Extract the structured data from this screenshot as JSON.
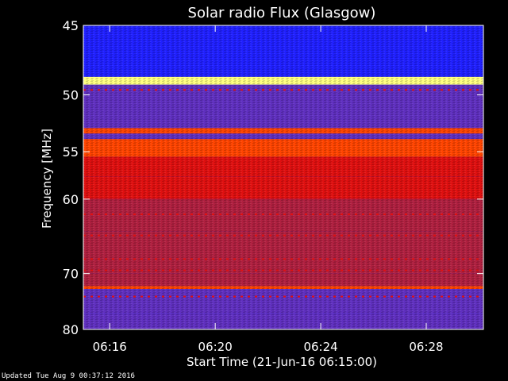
{
  "chart_data": {
    "type": "heatmap",
    "title": "Solar radio Flux (Glasgow)",
    "xlabel": "Start Time (21-Jun-16 06:15:00)",
    "ylabel": "Frequency [MHz]",
    "x_range": [
      "06:15:00",
      "06:30:10"
    ],
    "x_ticks": [
      "06:16",
      "06:20",
      "06:24",
      "06:28"
    ],
    "y_range": [
      45,
      80
    ],
    "y_ticks": [
      45,
      50,
      55,
      60,
      70,
      80
    ],
    "y_scale": "reciprocal",
    "colormap": [
      "#000080",
      "#2020ff",
      "#6030c0",
      "#b02040",
      "#e01010",
      "#ff4400",
      "#ff9900",
      "#ffff80"
    ],
    "bands": [
      {
        "f0": 45.0,
        "f1": 45.6,
        "level": 0.1
      },
      {
        "f0": 45.6,
        "f1": 48.6,
        "level": 0.18
      },
      {
        "f0": 48.6,
        "f1": 49.2,
        "level": 0.95
      },
      {
        "f0": 49.2,
        "f1": 52.8,
        "level": 0.22
      },
      {
        "f0": 52.8,
        "f1": 53.3,
        "level": 0.7
      },
      {
        "f0": 53.3,
        "f1": 53.8,
        "level": 0.3
      },
      {
        "f0": 53.8,
        "f1": 55.5,
        "level": 0.72
      },
      {
        "f0": 55.5,
        "f1": 57.5,
        "level": 0.62
      },
      {
        "f0": 57.5,
        "f1": 60.0,
        "level": 0.55
      },
      {
        "f0": 60.0,
        "f1": 64.0,
        "level": 0.45
      },
      {
        "f0": 64.0,
        "f1": 70.0,
        "level": 0.38
      },
      {
        "f0": 70.0,
        "f1": 72.0,
        "level": 0.36
      },
      {
        "f0": 72.0,
        "f1": 72.5,
        "level": 0.65
      },
      {
        "f0": 72.5,
        "f1": 77.0,
        "level": 0.35
      },
      {
        "f0": 77.0,
        "f1": 80.0,
        "level": 0.3
      }
    ],
    "interference_lines_mhz": [
      49.6,
      61.8,
      64.5,
      67.8,
      69.5,
      73.8
    ],
    "footer": "Updated Tue Aug  9 00:37:12 2016"
  }
}
